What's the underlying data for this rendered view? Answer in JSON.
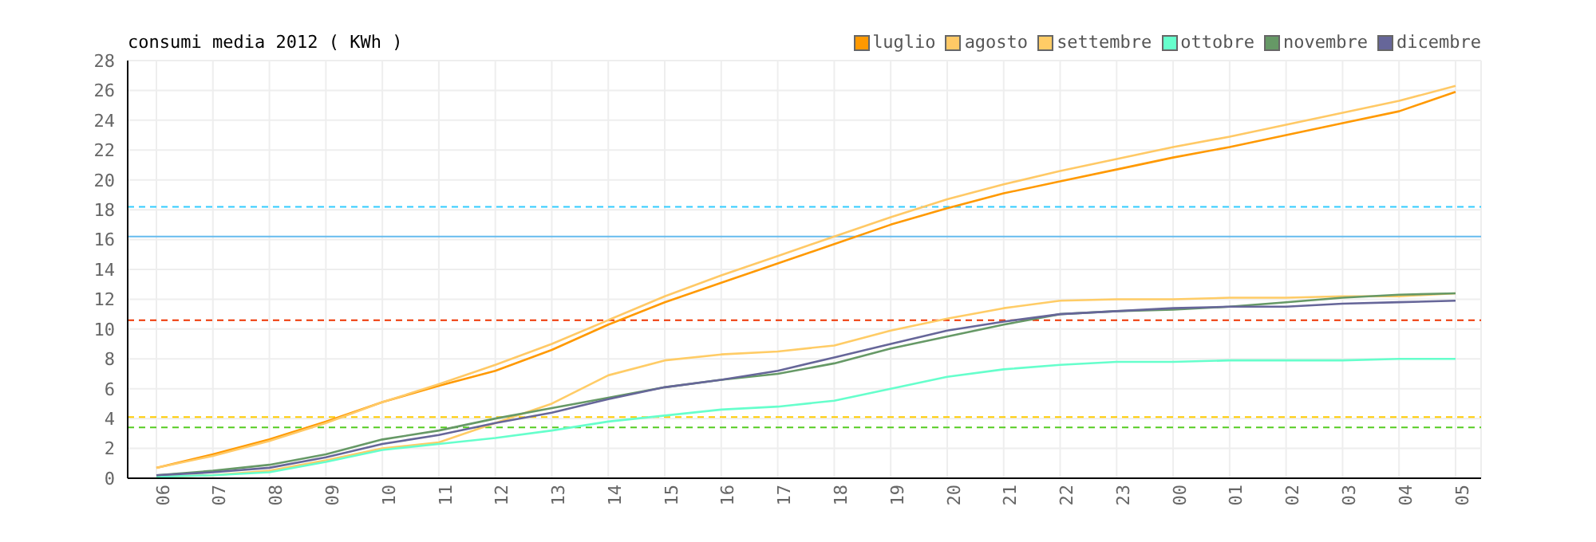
{
  "chart_data": {
    "type": "line",
    "title": "consumi media 2012 ( KWh )",
    "categories": [
      "06",
      "07",
      "08",
      "09",
      "10",
      "11",
      "12",
      "13",
      "14",
      "15",
      "16",
      "17",
      "18",
      "19",
      "20",
      "21",
      "22",
      "23",
      "00",
      "01",
      "02",
      "03",
      "04",
      "05"
    ],
    "series": [
      {
        "name": "luglio",
        "color": "#ff9900",
        "values": [
          0.7,
          1.6,
          2.6,
          3.8,
          5.1,
          6.2,
          7.2,
          8.6,
          10.3,
          11.8,
          13.1,
          14.4,
          15.7,
          17.0,
          18.1,
          19.1,
          19.9,
          20.7,
          21.5,
          22.2,
          23.0,
          23.8,
          24.6,
          25.9
        ]
      },
      {
        "name": "agosto",
        "color": "#ffc966",
        "values": [
          0.7,
          1.5,
          2.5,
          3.7,
          5.1,
          6.3,
          7.6,
          9.0,
          10.6,
          12.2,
          13.6,
          14.9,
          16.2,
          17.5,
          18.7,
          19.7,
          20.6,
          21.4,
          22.2,
          22.9,
          23.7,
          24.5,
          25.3,
          26.3
        ]
      },
      {
        "name": "settembre",
        "color": "#ffcc66",
        "values": [
          0.1,
          0.2,
          0.5,
          1.2,
          2.0,
          2.4,
          3.7,
          5.0,
          6.9,
          7.9,
          8.3,
          8.5,
          8.9,
          9.9,
          10.7,
          11.4,
          11.9,
          12.0,
          12.0,
          12.1,
          12.1,
          12.2,
          12.2,
          12.4
        ]
      },
      {
        "name": "ottobre",
        "color": "#66ffcc",
        "values": [
          0.1,
          0.2,
          0.4,
          1.1,
          1.9,
          2.3,
          2.7,
          3.2,
          3.8,
          4.2,
          4.6,
          4.8,
          5.2,
          6.0,
          6.8,
          7.3,
          7.6,
          7.8,
          7.8,
          7.9,
          7.9,
          7.9,
          8.0,
          8.0
        ]
      },
      {
        "name": "novembre",
        "color": "#669966",
        "values": [
          0.2,
          0.5,
          0.9,
          1.6,
          2.6,
          3.2,
          4.0,
          4.7,
          5.4,
          6.1,
          6.6,
          7.0,
          7.7,
          8.7,
          9.5,
          10.3,
          11.0,
          11.2,
          11.3,
          11.5,
          11.8,
          12.1,
          12.3,
          12.4
        ]
      },
      {
        "name": "dicembre",
        "color": "#666699",
        "values": [
          0.2,
          0.4,
          0.7,
          1.4,
          2.3,
          2.9,
          3.7,
          4.4,
          5.3,
          6.1,
          6.6,
          7.2,
          8.1,
          9.0,
          9.9,
          10.5,
          11.0,
          11.2,
          11.4,
          11.5,
          11.5,
          11.7,
          11.8,
          11.9
        ]
      }
    ],
    "ylim": [
      0,
      28
    ],
    "yticks": [
      0,
      2,
      4,
      6,
      8,
      10,
      12,
      14,
      16,
      18,
      20,
      22,
      24,
      26,
      28
    ],
    "ref_lines": [
      {
        "axis": "y",
        "value": 18.2,
        "color": "#33ccff",
        "line_style": "dashed"
      },
      {
        "axis": "y",
        "value": 16.2,
        "color": "#66bbee",
        "line_style": "solid"
      },
      {
        "axis": "y",
        "value": 10.6,
        "color": "#ee3300",
        "line_style": "dashed"
      },
      {
        "axis": "y",
        "value": 4.1,
        "color": "#ffcc00",
        "line_style": "dashed"
      },
      {
        "axis": "y",
        "value": 3.4,
        "color": "#55cc22",
        "line_style": "dashed"
      }
    ],
    "grid": true,
    "legend": "top right",
    "marker": "none",
    "line_style": "solid"
  }
}
